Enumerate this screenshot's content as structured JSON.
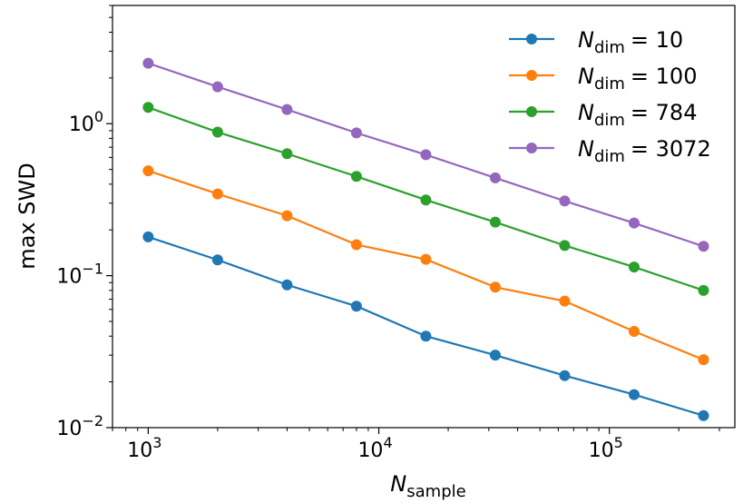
{
  "chart_data": {
    "type": "line",
    "title": "",
    "xlabel": {
      "base": "N",
      "sub": "sample"
    },
    "ylabel": "max SWD",
    "xscale": "log",
    "yscale": "log",
    "xlim": [
      700,
      350000
    ],
    "ylim": [
      0.01,
      6.0
    ],
    "grid": false,
    "legend_position": "top-right",
    "x": [
      1000,
      2000,
      4000,
      8000,
      16000,
      32000,
      64000,
      128000,
      256000
    ],
    "x_ticks": [
      {
        "value": 1000,
        "base": "10",
        "exp": "3"
      },
      {
        "value": 10000,
        "base": "10",
        "exp": "4"
      },
      {
        "value": 100000,
        "base": "10",
        "exp": "5"
      }
    ],
    "y_ticks": [
      {
        "value": 0.01,
        "base": "10",
        "exp": "−2"
      },
      {
        "value": 0.1,
        "base": "10",
        "exp": "−1"
      },
      {
        "value": 1,
        "base": "10",
        "exp": "0"
      }
    ],
    "series": [
      {
        "name": "N_dim = 10",
        "label_base": "N",
        "label_sub": "dim",
        "label_value": "= 10",
        "color": "#1f77b4",
        "values": [
          0.18,
          0.127,
          0.087,
          0.063,
          0.04,
          0.03,
          0.022,
          0.0165,
          0.012
        ]
      },
      {
        "name": "N_dim = 100",
        "label_base": "N",
        "label_sub": "dim",
        "label_value": "= 100",
        "color": "#ff7f0e",
        "values": [
          0.49,
          0.345,
          0.248,
          0.16,
          0.128,
          0.084,
          0.068,
          0.043,
          0.028
        ]
      },
      {
        "name": "N_dim = 784",
        "label_base": "N",
        "label_sub": "dim",
        "label_value": "= 784",
        "color": "#2ca02c",
        "values": [
          1.28,
          0.88,
          0.635,
          0.45,
          0.315,
          0.225,
          0.158,
          0.114,
          0.08
        ]
      },
      {
        "name": "N_dim = 3072",
        "label_base": "N",
        "label_sub": "dim",
        "label_value": "= 3072",
        "color": "#9467bd",
        "values": [
          2.5,
          1.75,
          1.24,
          0.87,
          0.625,
          0.44,
          0.31,
          0.222,
          0.156
        ]
      }
    ]
  }
}
